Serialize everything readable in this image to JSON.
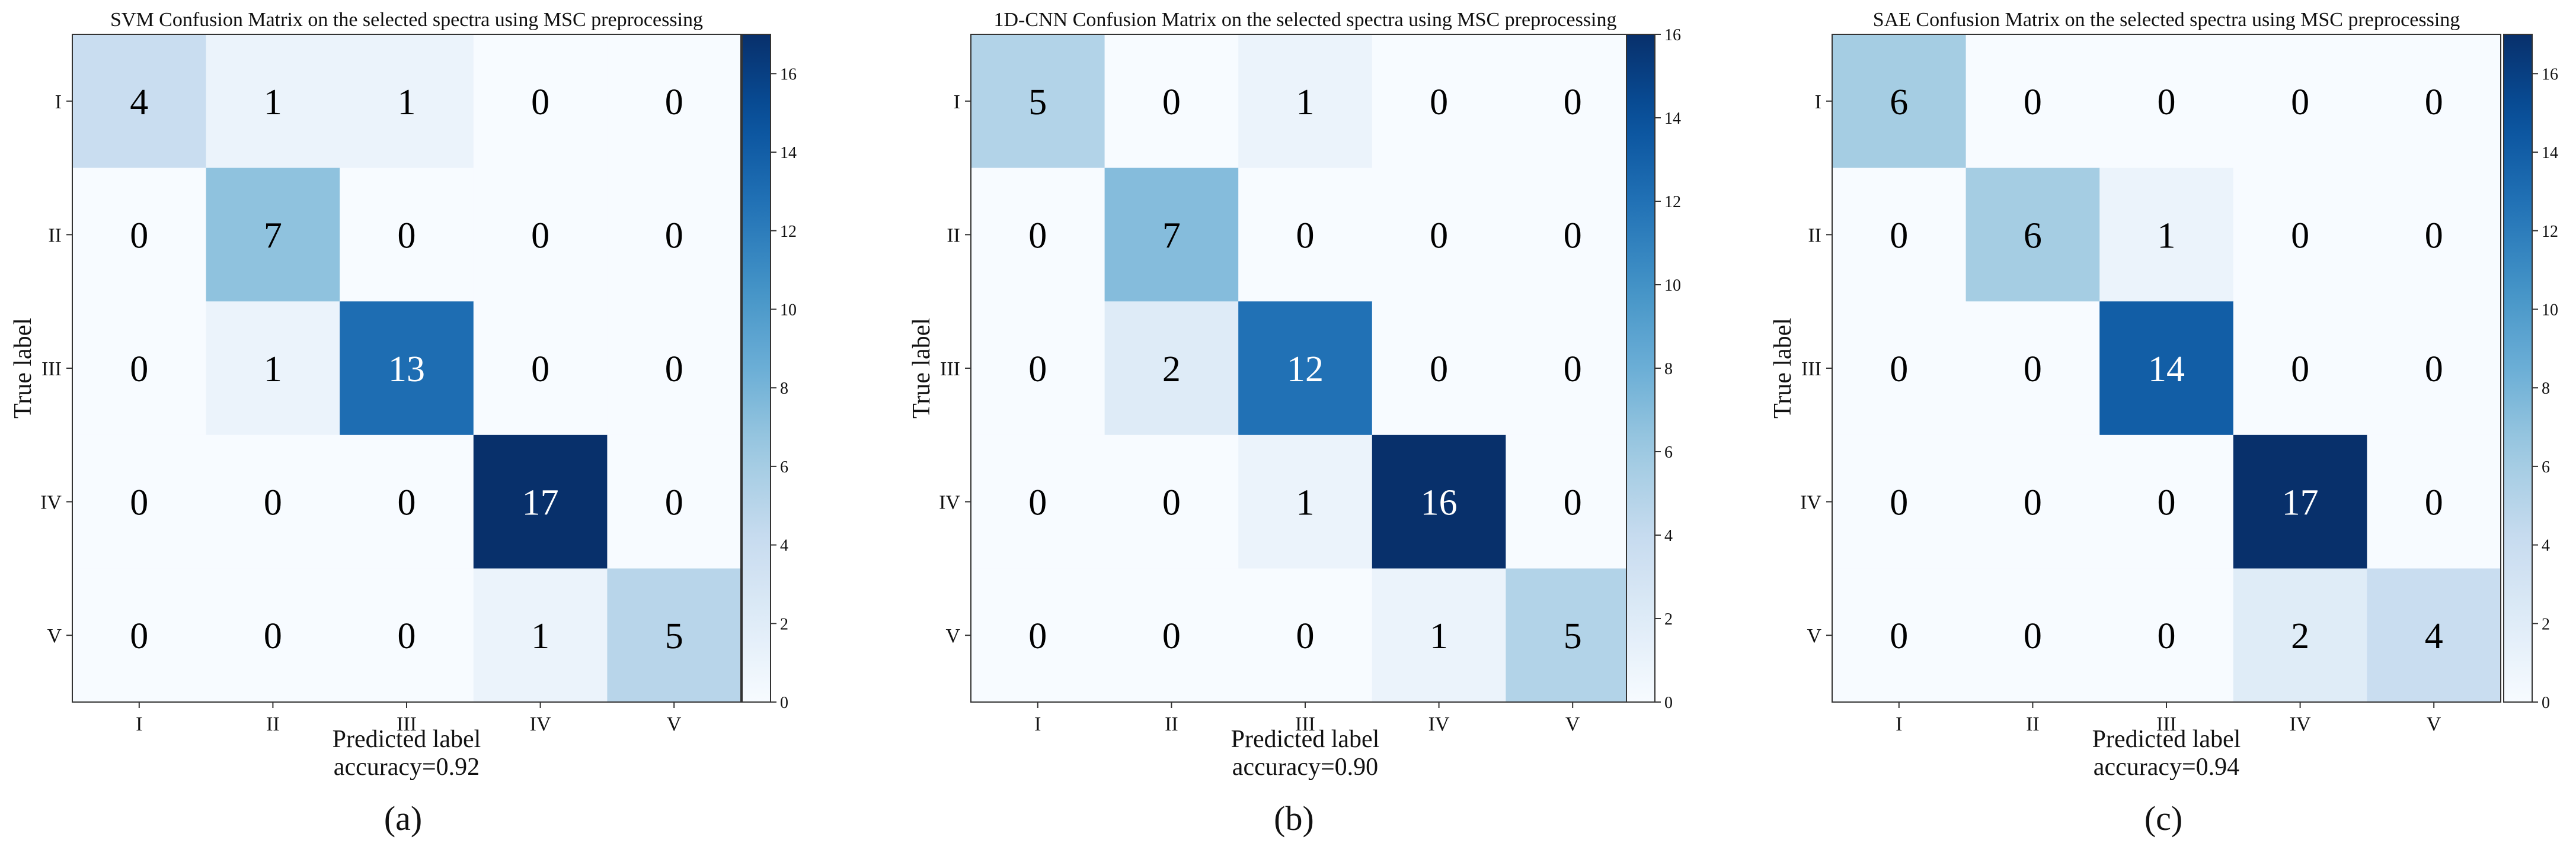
{
  "chart_data": [
    {
      "type": "heatmap",
      "panel_label": "(a)",
      "title": "SVM Confusion Matrix on the selected spectra using MSC preprocessing",
      "xlabel": "Predicted label",
      "ylabel": "True label",
      "footer": "accuracy=0.92",
      "x_categories": [
        "I",
        "II",
        "III",
        "IV",
        "V"
      ],
      "y_categories": [
        "I",
        "II",
        "III",
        "IV",
        "V"
      ],
      "matrix": [
        [
          4,
          1,
          1,
          0,
          0
        ],
        [
          0,
          7,
          0,
          0,
          0
        ],
        [
          0,
          1,
          13,
          0,
          0
        ],
        [
          0,
          0,
          0,
          17,
          0
        ],
        [
          0,
          0,
          0,
          1,
          5
        ]
      ],
      "colorbar": {
        "min": 0,
        "max": 17,
        "ticks": [
          "0",
          "2",
          "4",
          "6",
          "8",
          "10",
          "12",
          "14",
          "16"
        ],
        "colormap": "Blues"
      }
    },
    {
      "type": "heatmap",
      "panel_label": "(b)",
      "title": "1D-CNN Confusion Matrix on the selected spectra using MSC preprocessing",
      "xlabel": "Predicted label",
      "ylabel": "True label",
      "footer": "accuracy=0.90",
      "x_categories": [
        "I",
        "II",
        "III",
        "IV",
        "V"
      ],
      "y_categories": [
        "I",
        "II",
        "III",
        "IV",
        "V"
      ],
      "matrix": [
        [
          5,
          0,
          1,
          0,
          0
        ],
        [
          0,
          7,
          0,
          0,
          0
        ],
        [
          0,
          2,
          12,
          0,
          0
        ],
        [
          0,
          0,
          1,
          16,
          0
        ],
        [
          0,
          0,
          0,
          1,
          5
        ]
      ],
      "colorbar": {
        "min": 0,
        "max": 16,
        "ticks": [
          "0",
          "2",
          "4",
          "6",
          "8",
          "10",
          "12",
          "14",
          "16"
        ],
        "colormap": "Blues"
      }
    },
    {
      "type": "heatmap",
      "panel_label": "(c)",
      "title": "SAE Confusion Matrix on the selected spectra using MSC preprocessing",
      "xlabel": "Predicted label",
      "ylabel": "True label",
      "footer": "accuracy=0.94",
      "x_categories": [
        "I",
        "II",
        "III",
        "IV",
        "V"
      ],
      "y_categories": [
        "I",
        "II",
        "III",
        "IV",
        "V"
      ],
      "matrix": [
        [
          6,
          0,
          0,
          0,
          0
        ],
        [
          0,
          6,
          1,
          0,
          0
        ],
        [
          0,
          0,
          14,
          0,
          0
        ],
        [
          0,
          0,
          0,
          17,
          0
        ],
        [
          0,
          0,
          0,
          2,
          4
        ]
      ],
      "colorbar": {
        "min": 0,
        "max": 17,
        "ticks": [
          "0",
          "2",
          "4",
          "6",
          "8",
          "10",
          "12",
          "14",
          "16"
        ],
        "colormap": "Blues"
      }
    }
  ]
}
